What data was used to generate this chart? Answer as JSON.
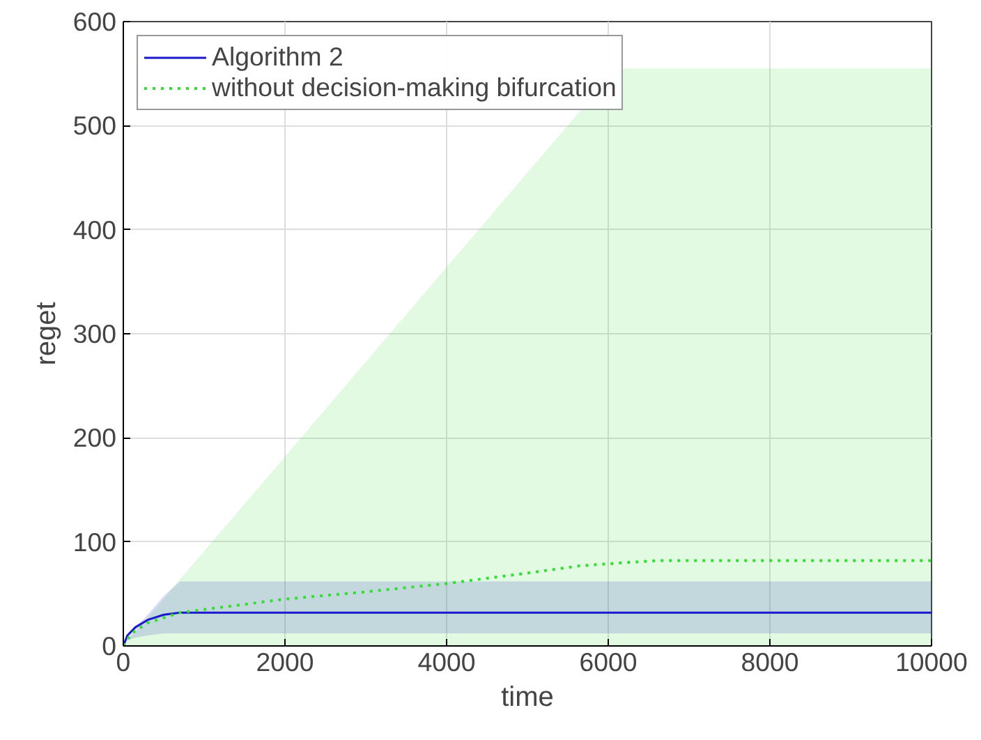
{
  "chart_data": {
    "type": "line",
    "xlabel": "time",
    "ylabel": "reget",
    "xlim": [
      0,
      10000
    ],
    "xticks": [
      0,
      2000,
      4000,
      6000,
      8000,
      10000
    ],
    "ylim": [
      0,
      600
    ],
    "yticks": [
      0,
      100,
      200,
      300,
      400,
      500,
      600
    ],
    "grid": true,
    "legend": "top left",
    "series": [
      {
        "name": "Algorithm 2",
        "color": "#1a1acc",
        "line_style": "solid",
        "x": [
          0,
          50,
          150,
          300,
          500,
          700,
          1000,
          10000
        ],
        "values": [
          0,
          10,
          18,
          25,
          30,
          32,
          32,
          32
        ],
        "lower": [
          0,
          5,
          8,
          10,
          12,
          12,
          12,
          12
        ],
        "upper": [
          0,
          10,
          18,
          30,
          48,
          62,
          62,
          62
        ]
      },
      {
        "name": "without decision-making bifurcation",
        "color": "#33dd33",
        "line_style": "dotted",
        "x": [
          0,
          100,
          300,
          700,
          1000,
          2000,
          3000,
          4000,
          5000,
          5650,
          6200,
          6600,
          8000,
          10000
        ],
        "values": [
          0,
          12,
          22,
          32,
          35,
          45,
          52,
          60,
          70,
          77,
          80,
          82,
          82,
          82
        ],
        "lower": [
          0,
          0,
          0,
          0,
          0,
          0,
          0,
          0,
          0,
          0,
          0,
          0,
          0,
          0
        ],
        "upper": [
          0,
          9,
          27,
          64,
          91,
          182,
          273,
          364,
          455,
          514,
          555,
          555,
          555,
          555
        ]
      }
    ]
  }
}
